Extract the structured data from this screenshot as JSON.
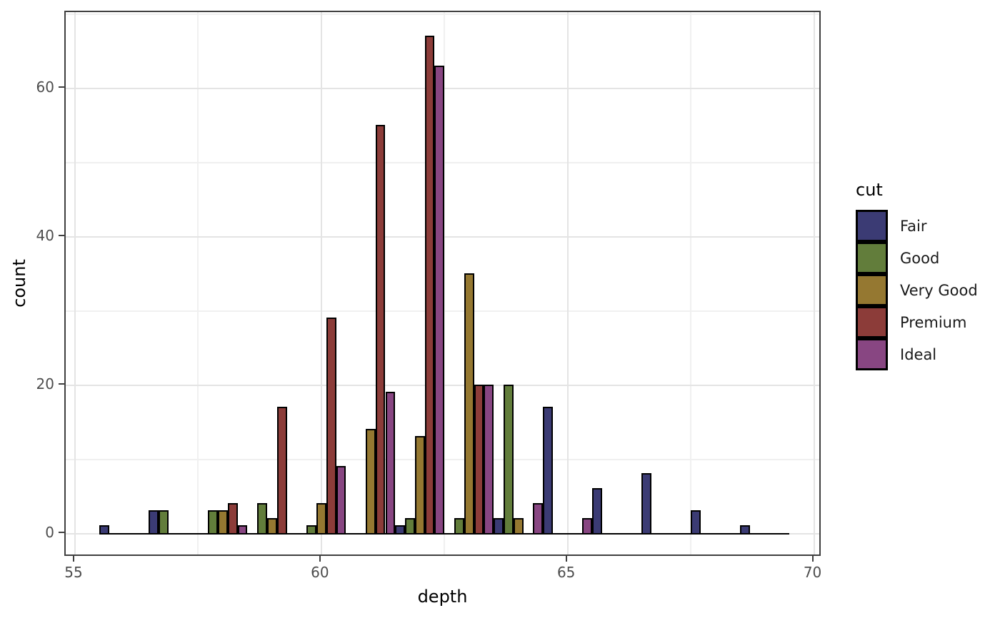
{
  "figure": {
    "background": "#ffffff",
    "panel_border_color": "#3f3f3f",
    "grid_major_color": "#e4e4e4",
    "grid_minor_color": "#f0f0f0",
    "bar_stroke_color": "#000000",
    "tick_label_color": "#4d4d4d",
    "axis_title_color": "#000000"
  },
  "axes": {
    "x_title": "depth",
    "y_title": "count",
    "x_tick_labels": [
      "55",
      "60",
      "65",
      "70"
    ],
    "y_tick_labels": [
      "0",
      "20",
      "40",
      "60"
    ]
  },
  "legend": {
    "title": "cut"
  },
  "chart_data": {
    "type": "bar",
    "subtype": "dodged-histogram",
    "title": "",
    "xlabel": "depth",
    "ylabel": "count",
    "legend_title": "cut",
    "legend_position": "right",
    "grid": true,
    "x_ticks": [
      55,
      60,
      65,
      70
    ],
    "y_ticks": [
      0,
      20,
      40,
      60
    ],
    "x_minor_ticks": [
      57.5,
      62.5,
      67.5
    ],
    "y_minor_ticks": [
      10,
      30,
      50,
      70
    ],
    "xlim": [
      54.8,
      70.25
    ],
    "ylim": [
      -3.2,
      70.3
    ],
    "bin_width": 1,
    "dodge_slot_width": 0.2,
    "baseline_span": [
      55.5,
      69.5
    ],
    "categories": [
      56,
      57,
      58,
      59,
      60,
      61,
      62,
      63,
      64,
      65,
      66,
      67,
      68,
      69
    ],
    "series": [
      {
        "name": "Fair",
        "color": "#3b3b74",
        "values": [
          1,
          3,
          0,
          0,
          0,
          0,
          1,
          0,
          2,
          17,
          6,
          8,
          3,
          1
        ]
      },
      {
        "name": "Good",
        "color": "#627d3b",
        "values": [
          0,
          3,
          3,
          4,
          1,
          0,
          2,
          2,
          20,
          0,
          0,
          0,
          0,
          0
        ]
      },
      {
        "name": "Very Good",
        "color": "#957831",
        "values": [
          0,
          0,
          3,
          2,
          4,
          14,
          13,
          35,
          2,
          0,
          0,
          0,
          0,
          0
        ]
      },
      {
        "name": "Premium",
        "color": "#8c3c39",
        "values": [
          0,
          0,
          4,
          17,
          29,
          55,
          67,
          20,
          0,
          0,
          0,
          0,
          0,
          0
        ]
      },
      {
        "name": "Ideal",
        "color": "#884682",
        "values": [
          0,
          0,
          1,
          0,
          9,
          19,
          63,
          20,
          4,
          2,
          0,
          0,
          0,
          0
        ]
      }
    ]
  }
}
